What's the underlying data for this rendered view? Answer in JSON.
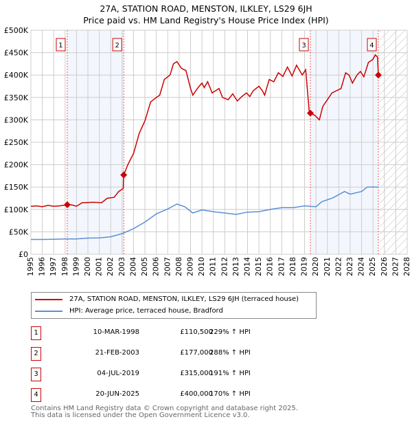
{
  "chart_data": {
    "type": "line",
    "title": "27A, STATION ROAD, MENSTON, ILKLEY, LS29 6JH",
    "subtitle": "Price paid vs. HM Land Registry's House Price Index (HPI)",
    "xlim": [
      1995,
      2028
    ],
    "ylim": [
      0,
      500000
    ],
    "y_ticks": [
      {
        "v": 0,
        "label": "£0"
      },
      {
        "v": 50000,
        "label": "£50K"
      },
      {
        "v": 100000,
        "label": "£100K"
      },
      {
        "v": 150000,
        "label": "£150K"
      },
      {
        "v": 200000,
        "label": "£200K"
      },
      {
        "v": 250000,
        "label": "£250K"
      },
      {
        "v": 300000,
        "label": "£300K"
      },
      {
        "v": 350000,
        "label": "£350K"
      },
      {
        "v": 400000,
        "label": "£400K"
      },
      {
        "v": 450000,
        "label": "£450K"
      },
      {
        "v": 500000,
        "label": "£500K"
      }
    ],
    "x_ticks": [
      "1995",
      "1996",
      "1997",
      "1998",
      "1999",
      "2000",
      "2001",
      "2002",
      "2003",
      "2004",
      "2005",
      "2006",
      "2007",
      "2008",
      "2009",
      "2010",
      "2011",
      "2012",
      "2013",
      "2014",
      "2015",
      "2016",
      "2017",
      "2018",
      "2019",
      "2020",
      "2021",
      "2022",
      "2023",
      "2024",
      "2025",
      "2026",
      "2027",
      "2028"
    ],
    "grid": true,
    "shaded_ranges": [
      [
        1998.19,
        2003.14
      ],
      [
        2019.51,
        2025.47
      ]
    ],
    "forecast_hatch_from": 2025.6,
    "series": [
      {
        "name": "27A, STATION ROAD, MENSTON, ILKLEY, LS29 6JH (terraced house)",
        "color": "#cc0000",
        "x": [
          1995,
          1995.5,
          1996,
          1996.5,
          1997,
          1997.5,
          1998.19,
          1998.6,
          1999,
          1999.5,
          2000.5,
          2001.2,
          2001.7,
          2002.3,
          2002.7,
          2003.1,
          2003.14,
          2003.5,
          2004,
          2004.5,
          2005,
          2005.5,
          2006,
          2006.3,
          2006.7,
          2007.2,
          2007.5,
          2007.8,
          2008.2,
          2008.6,
          2009,
          2009.2,
          2009.6,
          2010,
          2010.2,
          2010.5,
          2010.9,
          2011.5,
          2011.8,
          2012.3,
          2012.7,
          2013.1,
          2013.5,
          2013.9,
          2014.2,
          2014.5,
          2015,
          2015.3,
          2015.5,
          2015.9,
          2016.3,
          2016.7,
          2017.1,
          2017.5,
          2017.9,
          2018.3,
          2018.8,
          2019.1,
          2019.4,
          2019.51,
          2019.9,
          2020.3,
          2020.6,
          2021,
          2021.4,
          2021.8,
          2022.2,
          2022.6,
          2022.9,
          2023.2,
          2023.6,
          2023.9,
          2024.2,
          2024.6,
          2025,
          2025.2,
          2025.4,
          2025.47
        ],
        "y": [
          107000,
          108000,
          106000,
          109000,
          107000,
          108000,
          110500,
          110000,
          107000,
          115000,
          116000,
          115000,
          125000,
          127000,
          140000,
          147000,
          177000,
          200000,
          225000,
          270000,
          298000,
          340000,
          350000,
          355000,
          390000,
          400000,
          425000,
          430000,
          415000,
          410000,
          370000,
          355000,
          370000,
          382000,
          372000,
          385000,
          360000,
          370000,
          350000,
          345000,
          358000,
          342000,
          352000,
          360000,
          352000,
          365000,
          375000,
          365000,
          355000,
          390000,
          385000,
          405000,
          397000,
          418000,
          398000,
          422000,
          400000,
          412000,
          320000,
          315000,
          310000,
          300000,
          330000,
          345000,
          360000,
          365000,
          370000,
          405000,
          400000,
          382000,
          400000,
          408000,
          396000,
          428000,
          435000,
          445000,
          440000,
          400000
        ]
      },
      {
        "name": "HPI: Average price, terraced house, Bradford",
        "color": "#5b8ed6",
        "x": [
          1995,
          1996,
          1997,
          1998,
          1999,
          2000,
          2001,
          2002,
          2003,
          2004,
          2005,
          2006,
          2007,
          2007.8,
          2008.5,
          2009.2,
          2010,
          2011,
          2012,
          2013,
          2014,
          2015,
          2016,
          2017,
          2018,
          2019,
          2020,
          2020.5,
          2021.5,
          2022.5,
          2023,
          2024,
          2024.5,
          2025.5
        ],
        "y": [
          33000,
          33000,
          33500,
          34000,
          34000,
          36000,
          36500,
          39000,
          46000,
          57000,
          72000,
          90000,
          101000,
          112000,
          106000,
          92000,
          99000,
          95000,
          92000,
          89000,
          94000,
          95000,
          100000,
          104000,
          104000,
          108000,
          106000,
          117000,
          126000,
          140000,
          134000,
          140000,
          150000,
          150000
        ]
      }
    ],
    "sales": [
      {
        "n": "1",
        "x": 1998.19,
        "y": 110500,
        "date": "10-MAR-1998",
        "price": "£110,500",
        "hpi": "229% ↑ HPI"
      },
      {
        "n": "2",
        "x": 2003.14,
        "y": 177000,
        "date": "21-FEB-2003",
        "price": "£177,000",
        "hpi": "288% ↑ HPI"
      },
      {
        "n": "3",
        "x": 2019.51,
        "y": 315000,
        "date": "04-JUL-2019",
        "price": "£315,000",
        "hpi": "191% ↑ HPI"
      },
      {
        "n": "4",
        "x": 2025.47,
        "y": 400000,
        "date": "20-JUN-2025",
        "price": "£400,000",
        "hpi": "170% ↑ HPI"
      }
    ]
  },
  "footer": {
    "line1": "Contains HM Land Registry data © Crown copyright and database right 2025.",
    "line2": "This data is licensed under the Open Government Licence v3.0."
  }
}
